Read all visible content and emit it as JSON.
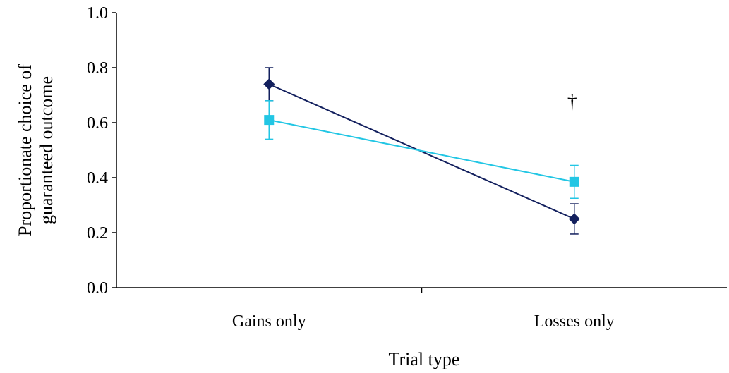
{
  "chart_data": {
    "type": "line",
    "title": "",
    "xlabel": "Trial type",
    "ylabel_lines": [
      "Proportionate choice of",
      "guaranteed outcome"
    ],
    "categories": [
      "Gains only",
      "Losses only"
    ],
    "ylim": [
      0,
      1
    ],
    "yticks": [
      "0.0",
      "0.2",
      "0.4",
      "0.6",
      "0.8",
      "1.0"
    ],
    "grid": false,
    "series": [
      {
        "marker": "diamond",
        "color": "#13205e",
        "values": [
          0.74,
          0.25
        ],
        "err": [
          0.06,
          0.055
        ]
      },
      {
        "marker": "square",
        "color": "#22c6e4",
        "values": [
          0.61,
          0.385
        ],
        "err": [
          0.07,
          0.06
        ]
      }
    ],
    "annotations": [
      {
        "text": "†",
        "category_index": 1,
        "y": 0.68
      }
    ]
  }
}
